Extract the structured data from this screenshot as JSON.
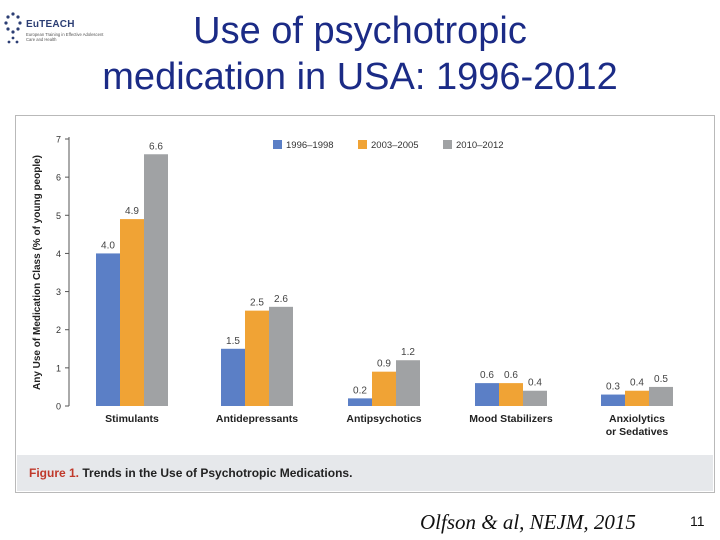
{
  "logo": {
    "name": "EuTEACH",
    "subtitle_lines": [
      "European Training in Effective Adolescent",
      "Care and Health"
    ]
  },
  "slide": {
    "title_line1": "Use of psychotropic",
    "title_line2": "medication in USA: 1996-2012",
    "citation": "Olfson & al, NEJM, 2015",
    "page_number": "11"
  },
  "figure": {
    "caption_label": "Figure 1.",
    "caption_text": "Trends in the Use of Psychotropic Medications."
  },
  "colors": {
    "s1": "#5b7fc6",
    "s2": "#f0a335",
    "s3": "#a0a2a4",
    "title": "#1b2b86"
  },
  "chart_data": {
    "type": "bar",
    "title": "",
    "xlabel": "",
    "ylabel": "Any Use of Medication Class (% of young people)",
    "ylim": [
      0,
      7
    ],
    "yticks": [
      "0",
      "1",
      "2",
      "3",
      "4",
      "5",
      "6",
      "7"
    ],
    "grid": false,
    "legend_position": "top-right",
    "categories": [
      [
        "Stimulants"
      ],
      [
        "Antidepressants"
      ],
      [
        "Antipsychotics"
      ],
      [
        "Mood Stabilizers"
      ],
      [
        "Anxiolytics",
        "or Sedatives"
      ]
    ],
    "series": [
      {
        "name": "1996–1998",
        "values": [
          4.0,
          1.5,
          0.2,
          0.6,
          0.3
        ],
        "labels": [
          "4.0",
          "1.5",
          "0.2",
          "0.6",
          "0.3"
        ]
      },
      {
        "name": "2003–2005",
        "values": [
          4.9,
          2.5,
          0.9,
          0.6,
          0.4
        ],
        "labels": [
          "4.9",
          "2.5",
          "0.9",
          "0.6",
          "0.4"
        ]
      },
      {
        "name": "2010–2012",
        "values": [
          6.6,
          2.6,
          1.2,
          0.4,
          0.5
        ],
        "labels": [
          "6.6",
          "2.6",
          "1.2",
          "0.4",
          "0.5"
        ]
      }
    ]
  }
}
